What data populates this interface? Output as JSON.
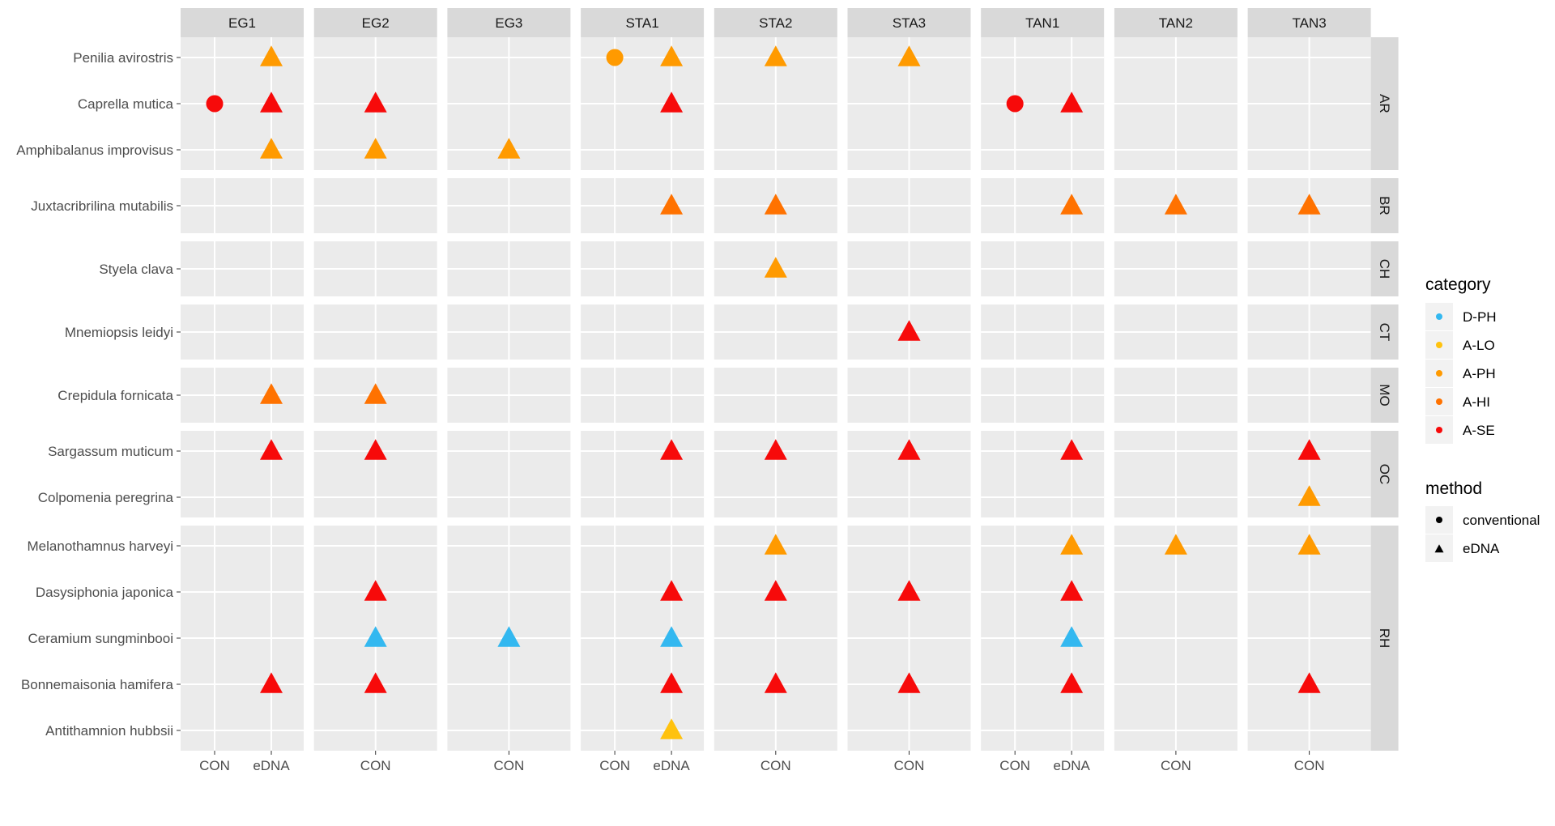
{
  "chart_data": {
    "type": "scatter",
    "title": "",
    "sites": [
      "EG1",
      "EG2",
      "EG3",
      "STA1",
      "STA2",
      "STA3",
      "TAN1",
      "TAN2",
      "TAN3"
    ],
    "site_x_categories": {
      "EG1": [
        "CON",
        "eDNA"
      ],
      "EG2": [
        "CON"
      ],
      "EG3": [
        "CON"
      ],
      "STA1": [
        "CON",
        "eDNA"
      ],
      "STA2": [
        "CON"
      ],
      "STA3": [
        "CON"
      ],
      "TAN1": [
        "CON",
        "eDNA"
      ],
      "TAN2": [
        "CON"
      ],
      "TAN3": [
        "CON"
      ]
    },
    "groups": [
      {
        "name": "AR",
        "species": [
          "Penilia avirostris",
          "Caprella mutica",
          "Amphibalanus improvisus"
        ]
      },
      {
        "name": "BR",
        "species": [
          "Juxtacribrilina mutabilis"
        ]
      },
      {
        "name": "CH",
        "species": [
          "Styela clava"
        ]
      },
      {
        "name": "CT",
        "species": [
          "Mnemiopsis leidyi"
        ]
      },
      {
        "name": "MO",
        "species": [
          "Crepidula fornicata"
        ]
      },
      {
        "name": "OC",
        "species": [
          "Sargassum muticum",
          "Colpomenia peregrina"
        ]
      },
      {
        "name": "RH",
        "species": [
          "Melanothamnus harveyi",
          "Dasysiphonia japonica",
          "Ceramium sungminbooi",
          "Bonnemaisonia hamifera",
          "Antithamnion hubbsii"
        ]
      }
    ],
    "points": [
      {
        "site": "EG1",
        "x": "eDNA",
        "species": "Penilia avirostris",
        "category": "A-PH",
        "method": "eDNA"
      },
      {
        "site": "STA1",
        "x": "CON",
        "species": "Penilia avirostris",
        "category": "A-PH",
        "method": "conventional"
      },
      {
        "site": "STA1",
        "x": "eDNA",
        "species": "Penilia avirostris",
        "category": "A-PH",
        "method": "eDNA"
      },
      {
        "site": "STA2",
        "x": "CON",
        "species": "Penilia avirostris",
        "category": "A-PH",
        "method": "eDNA"
      },
      {
        "site": "STA3",
        "x": "CON",
        "species": "Penilia avirostris",
        "category": "A-PH",
        "method": "eDNA"
      },
      {
        "site": "EG1",
        "x": "CON",
        "species": "Caprella mutica",
        "category": "A-SE",
        "method": "conventional"
      },
      {
        "site": "EG1",
        "x": "eDNA",
        "species": "Caprella mutica",
        "category": "A-SE",
        "method": "eDNA"
      },
      {
        "site": "EG2",
        "x": "CON",
        "species": "Caprella mutica",
        "category": "A-SE",
        "method": "eDNA"
      },
      {
        "site": "STA1",
        "x": "eDNA",
        "species": "Caprella mutica",
        "category": "A-SE",
        "method": "eDNA"
      },
      {
        "site": "TAN1",
        "x": "CON",
        "species": "Caprella mutica",
        "category": "A-SE",
        "method": "conventional"
      },
      {
        "site": "TAN1",
        "x": "eDNA",
        "species": "Caprella mutica",
        "category": "A-SE",
        "method": "eDNA"
      },
      {
        "site": "EG1",
        "x": "eDNA",
        "species": "Amphibalanus improvisus",
        "category": "A-PH",
        "method": "eDNA"
      },
      {
        "site": "EG2",
        "x": "CON",
        "species": "Amphibalanus improvisus",
        "category": "A-PH",
        "method": "eDNA"
      },
      {
        "site": "EG3",
        "x": "CON",
        "species": "Amphibalanus improvisus",
        "category": "A-PH",
        "method": "eDNA"
      },
      {
        "site": "STA1",
        "x": "eDNA",
        "species": "Juxtacribrilina mutabilis",
        "category": "A-HI",
        "method": "eDNA"
      },
      {
        "site": "STA2",
        "x": "CON",
        "species": "Juxtacribrilina mutabilis",
        "category": "A-HI",
        "method": "eDNA"
      },
      {
        "site": "TAN1",
        "x": "eDNA",
        "species": "Juxtacribrilina mutabilis",
        "category": "A-HI",
        "method": "eDNA"
      },
      {
        "site": "TAN2",
        "x": "CON",
        "species": "Juxtacribrilina mutabilis",
        "category": "A-HI",
        "method": "eDNA"
      },
      {
        "site": "TAN3",
        "x": "CON",
        "species": "Juxtacribrilina mutabilis",
        "category": "A-HI",
        "method": "eDNA"
      },
      {
        "site": "STA2",
        "x": "CON",
        "species": "Styela clava",
        "category": "A-PH",
        "method": "eDNA"
      },
      {
        "site": "STA3",
        "x": "CON",
        "species": "Mnemiopsis leidyi",
        "category": "A-SE",
        "method": "eDNA"
      },
      {
        "site": "EG1",
        "x": "eDNA",
        "species": "Crepidula fornicata",
        "category": "A-HI",
        "method": "eDNA"
      },
      {
        "site": "EG2",
        "x": "CON",
        "species": "Crepidula fornicata",
        "category": "A-HI",
        "method": "eDNA"
      },
      {
        "site": "EG1",
        "x": "eDNA",
        "species": "Sargassum muticum",
        "category": "A-SE",
        "method": "eDNA"
      },
      {
        "site": "EG2",
        "x": "CON",
        "species": "Sargassum muticum",
        "category": "A-SE",
        "method": "eDNA"
      },
      {
        "site": "STA1",
        "x": "eDNA",
        "species": "Sargassum muticum",
        "category": "A-SE",
        "method": "eDNA"
      },
      {
        "site": "STA2",
        "x": "CON",
        "species": "Sargassum muticum",
        "category": "A-SE",
        "method": "eDNA"
      },
      {
        "site": "STA3",
        "x": "CON",
        "species": "Sargassum muticum",
        "category": "A-SE",
        "method": "eDNA"
      },
      {
        "site": "TAN1",
        "x": "eDNA",
        "species": "Sargassum muticum",
        "category": "A-SE",
        "method": "eDNA"
      },
      {
        "site": "TAN3",
        "x": "CON",
        "species": "Sargassum muticum",
        "category": "A-SE",
        "method": "eDNA"
      },
      {
        "site": "TAN3",
        "x": "CON",
        "species": "Colpomenia peregrina",
        "category": "A-PH",
        "method": "eDNA"
      },
      {
        "site": "STA2",
        "x": "CON",
        "species": "Melanothamnus harveyi",
        "category": "A-PH",
        "method": "eDNA"
      },
      {
        "site": "TAN1",
        "x": "eDNA",
        "species": "Melanothamnus harveyi",
        "category": "A-PH",
        "method": "eDNA"
      },
      {
        "site": "TAN2",
        "x": "CON",
        "species": "Melanothamnus harveyi",
        "category": "A-PH",
        "method": "eDNA"
      },
      {
        "site": "TAN3",
        "x": "CON",
        "species": "Melanothamnus harveyi",
        "category": "A-PH",
        "method": "eDNA"
      },
      {
        "site": "EG2",
        "x": "CON",
        "species": "Dasysiphonia japonica",
        "category": "A-SE",
        "method": "eDNA"
      },
      {
        "site": "STA1",
        "x": "eDNA",
        "species": "Dasysiphonia japonica",
        "category": "A-SE",
        "method": "eDNA"
      },
      {
        "site": "STA2",
        "x": "CON",
        "species": "Dasysiphonia japonica",
        "category": "A-SE",
        "method": "eDNA"
      },
      {
        "site": "STA3",
        "x": "CON",
        "species": "Dasysiphonia japonica",
        "category": "A-SE",
        "method": "eDNA"
      },
      {
        "site": "TAN1",
        "x": "eDNA",
        "species": "Dasysiphonia japonica",
        "category": "A-SE",
        "method": "eDNA"
      },
      {
        "site": "EG2",
        "x": "CON",
        "species": "Ceramium sungminbooi",
        "category": "D-PH",
        "method": "eDNA"
      },
      {
        "site": "EG3",
        "x": "CON",
        "species": "Ceramium sungminbooi",
        "category": "D-PH",
        "method": "eDNA"
      },
      {
        "site": "STA1",
        "x": "eDNA",
        "species": "Ceramium sungminbooi",
        "category": "D-PH",
        "method": "eDNA"
      },
      {
        "site": "TAN1",
        "x": "eDNA",
        "species": "Ceramium sungminbooi",
        "category": "D-PH",
        "method": "eDNA"
      },
      {
        "site": "EG1",
        "x": "eDNA",
        "species": "Bonnemaisonia hamifera",
        "category": "A-SE",
        "method": "eDNA"
      },
      {
        "site": "EG2",
        "x": "CON",
        "species": "Bonnemaisonia hamifera",
        "category": "A-SE",
        "method": "eDNA"
      },
      {
        "site": "STA1",
        "x": "eDNA",
        "species": "Bonnemaisonia hamifera",
        "category": "A-SE",
        "method": "eDNA"
      },
      {
        "site": "STA2",
        "x": "CON",
        "species": "Bonnemaisonia hamifera",
        "category": "A-SE",
        "method": "eDNA"
      },
      {
        "site": "STA3",
        "x": "CON",
        "species": "Bonnemaisonia hamifera",
        "category": "A-SE",
        "method": "eDNA"
      },
      {
        "site": "TAN1",
        "x": "eDNA",
        "species": "Bonnemaisonia hamifera",
        "category": "A-SE",
        "method": "eDNA"
      },
      {
        "site": "TAN3",
        "x": "CON",
        "species": "Bonnemaisonia hamifera",
        "category": "A-SE",
        "method": "eDNA"
      },
      {
        "site": "STA1",
        "x": "eDNA",
        "species": "Antithamnion hubbsii",
        "category": "A-LO",
        "method": "eDNA"
      }
    ],
    "legend": {
      "category": {
        "title": "category",
        "items": [
          {
            "label": "D-PH",
            "color": "#33b8f0"
          },
          {
            "label": "A-LO",
            "color": "#ffc20e"
          },
          {
            "label": "A-PH",
            "color": "#ff9a00"
          },
          {
            "label": "A-HI",
            "color": "#ff7200"
          },
          {
            "label": "A-SE",
            "color": "#f70a0a"
          }
        ]
      },
      "method": {
        "title": "method",
        "items": [
          {
            "label": "conventional",
            "shape": "circle"
          },
          {
            "label": "eDNA",
            "shape": "triangle"
          }
        ]
      },
      "position": "right"
    },
    "grid": true,
    "colors": {
      "panel_bg": "#ebebeb",
      "strip_bg": "#d9d9d9",
      "grid": "#ffffff"
    }
  }
}
